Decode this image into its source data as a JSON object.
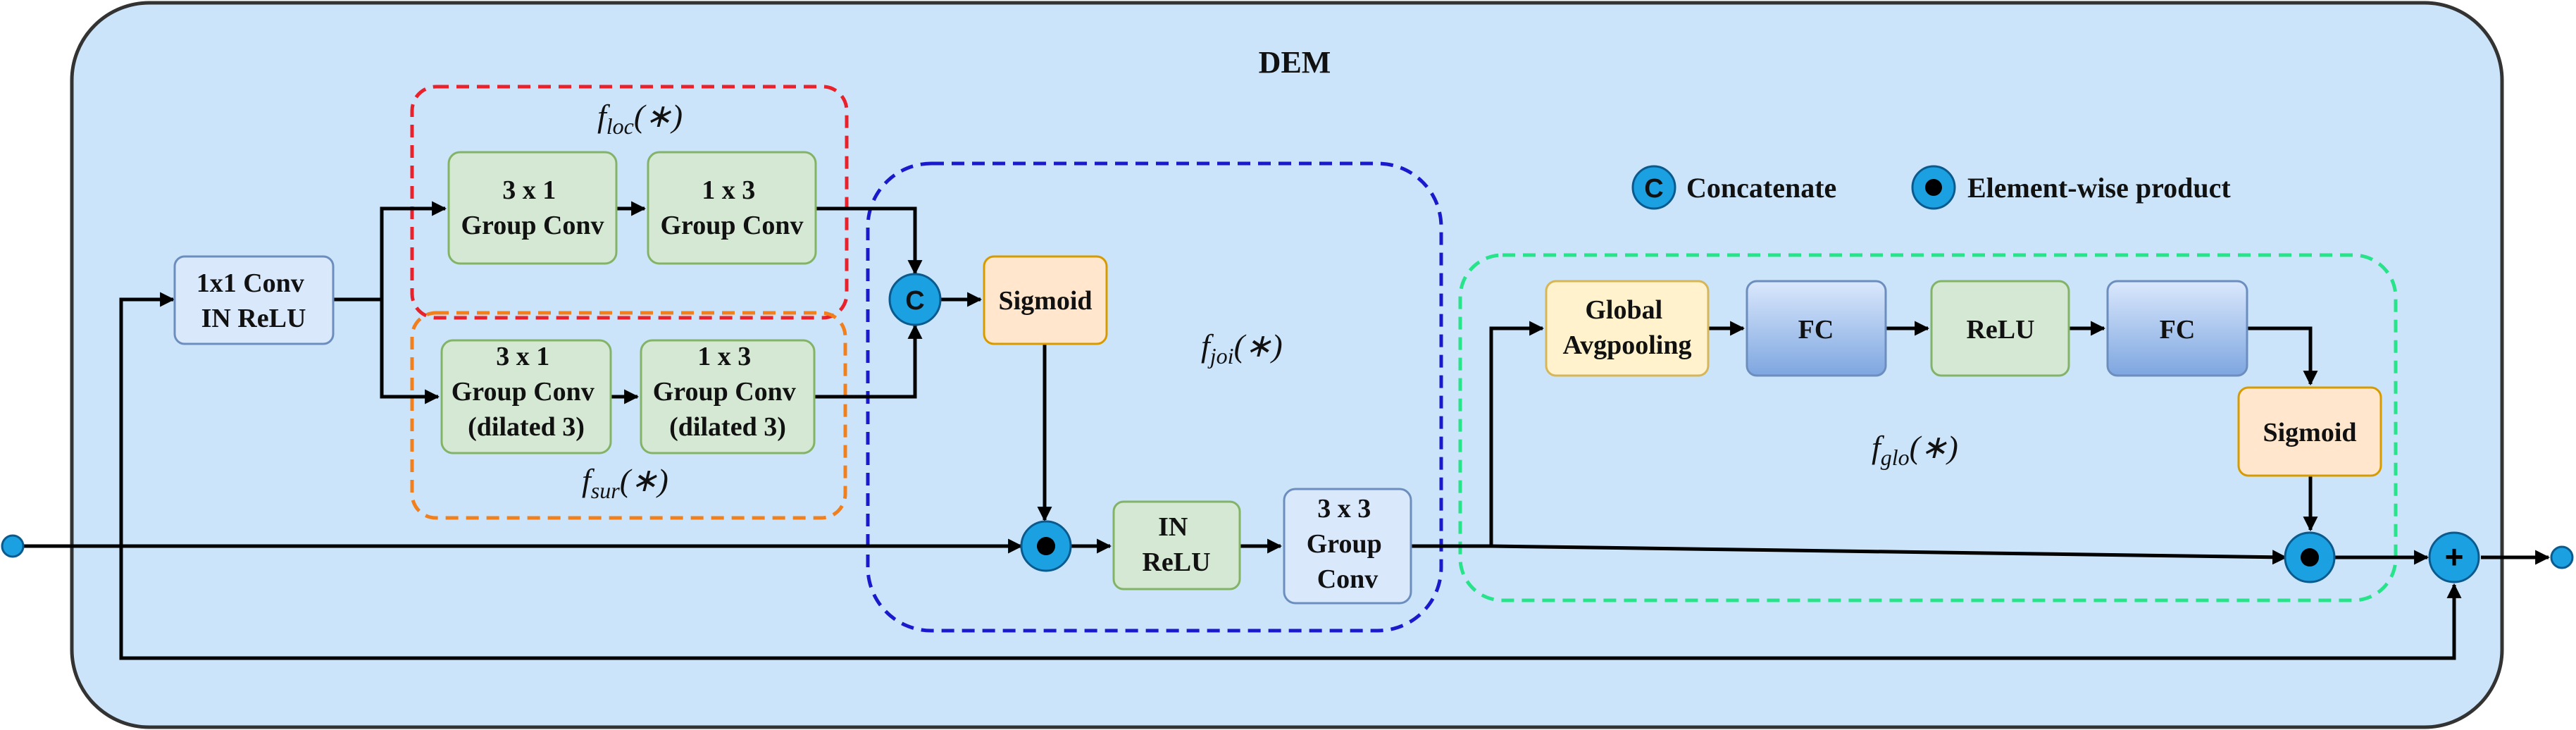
{
  "title": "DEM",
  "legend": {
    "concat_symbol": "C",
    "concat_label": "Concatenate",
    "product_label": "Element-wise product"
  },
  "blocks": {
    "conv1x1": [
      "1x1 Conv",
      "IN ReLU"
    ],
    "loc_3x1": [
      "3 x 1",
      "Group Conv"
    ],
    "loc_1x3": [
      "1 x 3",
      "Group Conv"
    ],
    "sur_3x1": [
      "3 x 1",
      "Group Conv",
      "(dilated 3)"
    ],
    "sur_1x3": [
      "1 x 3",
      "Group Conv",
      "(dilated 3)"
    ],
    "sigmoid_joi": [
      "Sigmoid"
    ],
    "in_relu": [
      "IN",
      "ReLU"
    ],
    "group_conv_3x3": [
      "3 x 3",
      "Group",
      "Conv"
    ],
    "global_avgpool": [
      "Global",
      "Avgpooling"
    ],
    "fc1": [
      "FC"
    ],
    "relu": [
      "ReLU"
    ],
    "fc2": [
      "FC"
    ],
    "sigmoid_glo": [
      "Sigmoid"
    ]
  },
  "regions": {
    "loc": {
      "func": "f",
      "sub": "loc",
      "arg": "(∗)",
      "color": "#e8212b"
    },
    "sur": {
      "func": "f",
      "sub": "sur",
      "arg": "(∗)",
      "color": "#f07f1c"
    },
    "joi": {
      "func": "f",
      "sub": "joi",
      "arg": "(∗)",
      "color": "#1a1acc"
    },
    "glo": {
      "func": "f",
      "sub": "glo",
      "arg": "(∗)",
      "color": "#27e38a"
    }
  },
  "operators": {
    "concat": "C",
    "add": "+"
  },
  "colors": {
    "panel": "#cce4fa",
    "green_block": "#d5e8d4",
    "green_border": "#82b366",
    "light_blue_block": "#dae8fc",
    "light_blue_border": "#6c8ebf",
    "orange_block": "#ffe6cc",
    "orange_border": "#d79b00",
    "yellow_block": "#fff2cc",
    "yellow_border": "#d6b656",
    "fc_top": "#dae8fc",
    "fc_bottom": "#7ea6e0",
    "operator_fill": "#1ba1e2"
  }
}
